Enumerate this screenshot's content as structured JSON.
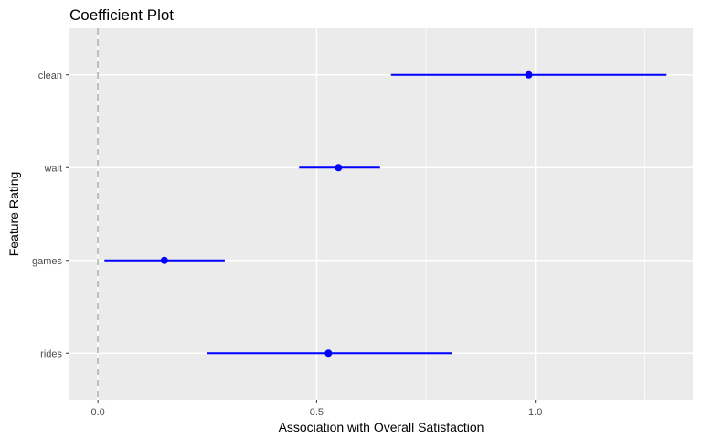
{
  "chart_data": {
    "type": "scatter",
    "title": "Coefficient Plot",
    "xlabel": "Association with Overall Satisfaction",
    "ylabel": "Feature Rating",
    "xlim": [
      -0.065,
      1.36
    ],
    "x_ticks": [
      0.0,
      0.5,
      1.0
    ],
    "x_tick_labels": [
      "0.0",
      "0.5",
      "1.0"
    ],
    "categories": [
      "clean",
      "wait",
      "games",
      "rides"
    ],
    "estimates": [
      0.985,
      0.55,
      0.152,
      0.527
    ],
    "ci_low": [
      0.67,
      0.46,
      0.015,
      0.25
    ],
    "ci_high": [
      1.3,
      0.645,
      0.29,
      0.81
    ],
    "reference_line": 0,
    "grid": true,
    "legend": "none",
    "colors": {
      "panel": "#ebebeb",
      "grid": "#ffffff",
      "series": "#0000ff",
      "reference": "#b3b3b3",
      "tick_label": "#4d4d4d"
    }
  }
}
